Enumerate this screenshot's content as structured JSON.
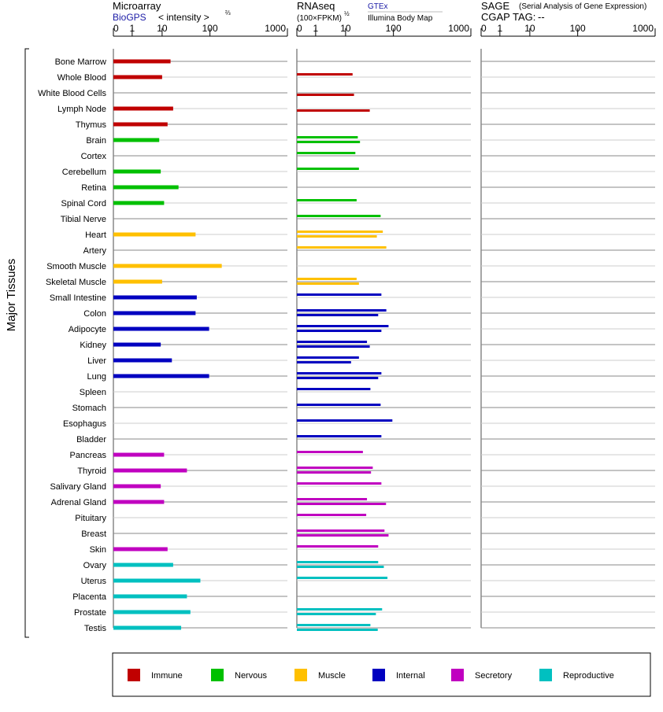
{
  "headers": {
    "microarray": {
      "title": "Microarray",
      "source": "BioGPS",
      "unit": "< intensity >",
      "unit_exp": "⅔"
    },
    "rnaseq": {
      "title": "RNAseq",
      "unit": "(100×FPKM)",
      "unit_exp": "½",
      "source1": "GTEx",
      "source2": "Illumina Body Map"
    },
    "sage": {
      "title": "SAGE",
      "subtitle": "(Serial Analysis of Gene Expression)",
      "tag_label": "CGAP TAG:",
      "tag_value": "--"
    }
  },
  "y_group_label": "Major Tissues",
  "chart_data": {
    "type": "bar",
    "orientation": "horizontal",
    "axis_ticks": [
      "0",
      "1",
      "10",
      "100",
      "1000"
    ],
    "xlim": [
      0,
      1000
    ],
    "panels": [
      "microarray",
      "gtex",
      "illumina",
      "sage"
    ],
    "groups": [
      {
        "name": "Immune",
        "color": "#c00000"
      },
      {
        "name": "Nervous",
        "color": "#00c000"
      },
      {
        "name": "Muscle",
        "color": "#ffc000"
      },
      {
        "name": "Internal",
        "color": "#0000c0"
      },
      {
        "name": "Secretory",
        "color": "#c000c0"
      },
      {
        "name": "Reproductive",
        "color": "#00c0c0"
      }
    ],
    "rows": [
      {
        "tissue": "Bone Marrow",
        "group": 0,
        "microarray": 15,
        "gtex": null,
        "illumina": null
      },
      {
        "tissue": "Whole Blood",
        "group": 0,
        "microarray": 10,
        "gtex": 14,
        "illumina": null
      },
      {
        "tissue": "White Blood Cells",
        "group": 0,
        "microarray": null,
        "gtex": null,
        "illumina": 15
      },
      {
        "tissue": "Lymph Node",
        "group": 0,
        "microarray": 17,
        "gtex": null,
        "illumina": 32
      },
      {
        "tissue": "Thymus",
        "group": 0,
        "microarray": 13,
        "gtex": null,
        "illumina": null
      },
      {
        "tissue": "Brain",
        "group": 1,
        "microarray": 8,
        "gtex": 18,
        "illumina": 20
      },
      {
        "tissue": "Cortex",
        "group": 1,
        "microarray": null,
        "gtex": 16,
        "illumina": null
      },
      {
        "tissue": "Cerebellum",
        "group": 1,
        "microarray": 9,
        "gtex": 19,
        "illumina": null
      },
      {
        "tissue": "Retina",
        "group": 1,
        "microarray": 22,
        "gtex": null,
        "illumina": null
      },
      {
        "tissue": "Spinal Cord",
        "group": 1,
        "microarray": 11,
        "gtex": 17,
        "illumina": null
      },
      {
        "tissue": "Tibial Nerve",
        "group": 1,
        "microarray": null,
        "gtex": 54,
        "illumina": null
      },
      {
        "tissue": "Heart",
        "group": 2,
        "microarray": 50,
        "gtex": 60,
        "illumina": 45
      },
      {
        "tissue": "Artery",
        "group": 2,
        "microarray": null,
        "gtex": 71,
        "illumina": null
      },
      {
        "tissue": "Smooth Muscle",
        "group": 2,
        "microarray": 142,
        "gtex": null,
        "illumina": null
      },
      {
        "tissue": "Skeletal Muscle",
        "group": 2,
        "microarray": 10,
        "gtex": 17,
        "illumina": 19
      },
      {
        "tissue": "Small Intestine",
        "group": 3,
        "microarray": 53,
        "gtex": 56,
        "illumina": null
      },
      {
        "tissue": "Colon",
        "group": 3,
        "microarray": 50,
        "gtex": 71,
        "illumina": 48
      },
      {
        "tissue": "Adipocyte",
        "group": 3,
        "microarray": 96,
        "gtex": 79,
        "illumina": 56
      },
      {
        "tissue": "Kidney",
        "group": 3,
        "microarray": 9,
        "gtex": 28,
        "illumina": 32
      },
      {
        "tissue": "Liver",
        "group": 3,
        "microarray": 16,
        "gtex": 19,
        "illumina": 13
      },
      {
        "tissue": "Lung",
        "group": 3,
        "microarray": 96,
        "gtex": 56,
        "illumina": 48
      },
      {
        "tissue": "Spleen",
        "group": 3,
        "microarray": null,
        "gtex": 33,
        "illumina": null
      },
      {
        "tissue": "Stomach",
        "group": 3,
        "microarray": null,
        "gtex": 54,
        "illumina": null
      },
      {
        "tissue": "Esophagus",
        "group": 3,
        "microarray": null,
        "gtex": 95,
        "illumina": null
      },
      {
        "tissue": "Bladder",
        "group": 3,
        "microarray": null,
        "gtex": 56,
        "illumina": null
      },
      {
        "tissue": "Pancreas",
        "group": 4,
        "microarray": 11,
        "gtex": 23,
        "illumina": null
      },
      {
        "tissue": "Thyroid",
        "group": 4,
        "microarray": 33,
        "gtex": 37,
        "illumina": 34
      },
      {
        "tissue": "Salivary Gland",
        "group": 4,
        "microarray": 9,
        "gtex": 56,
        "illumina": null
      },
      {
        "tissue": "Adrenal Gland",
        "group": 4,
        "microarray": 11,
        "gtex": 28,
        "illumina": 70
      },
      {
        "tissue": "Pituitary",
        "group": 4,
        "microarray": null,
        "gtex": 27,
        "illumina": null
      },
      {
        "tissue": "Breast",
        "group": 4,
        "microarray": null,
        "gtex": 65,
        "illumina": 79
      },
      {
        "tissue": "Skin",
        "group": 4,
        "microarray": 13,
        "gtex": 48,
        "illumina": null
      },
      {
        "tissue": "Ovary",
        "group": 5,
        "microarray": 17,
        "gtex": 48,
        "illumina": 63
      },
      {
        "tissue": "Uterus",
        "group": 5,
        "microarray": 63,
        "gtex": 75,
        "illumina": null
      },
      {
        "tissue": "Placenta",
        "group": 5,
        "microarray": 33,
        "gtex": null,
        "illumina": null
      },
      {
        "tissue": "Prostate",
        "group": 5,
        "microarray": 39,
        "gtex": 58,
        "illumina": 43
      },
      {
        "tissue": "Testis",
        "group": 5,
        "microarray": 25,
        "gtex": 33,
        "illumina": 47
      }
    ]
  }
}
